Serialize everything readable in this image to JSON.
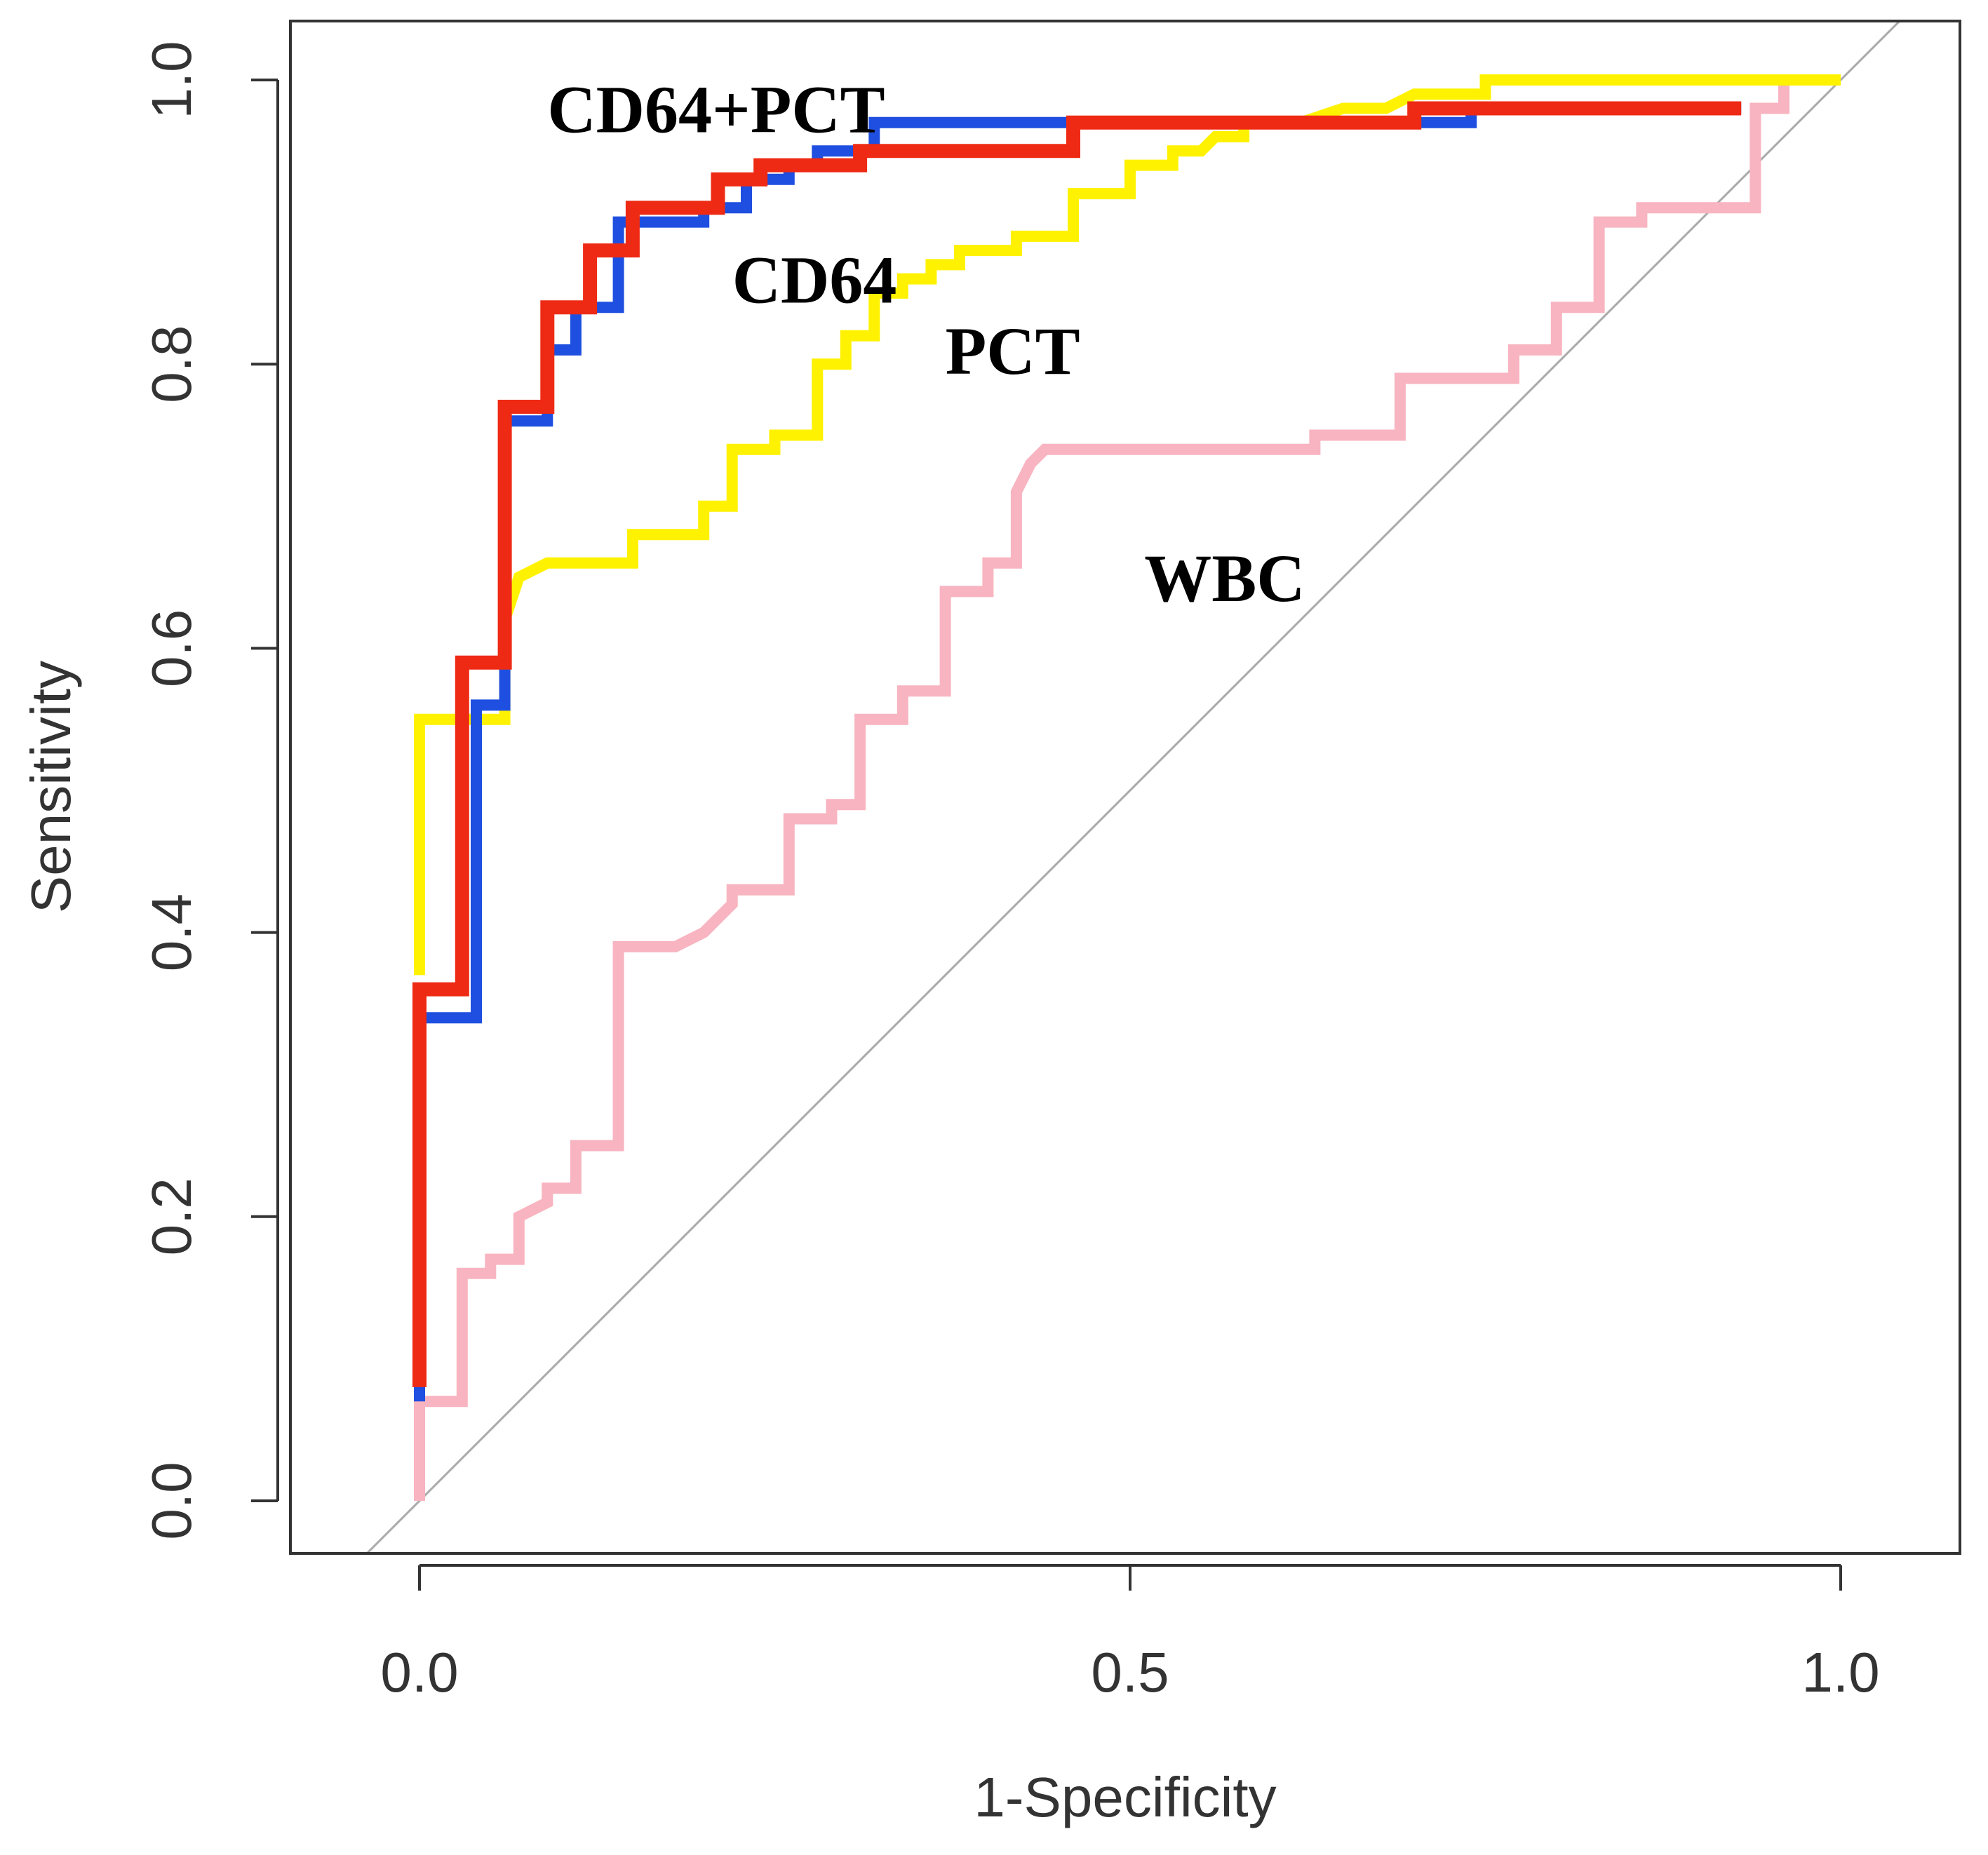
{
  "chart_data": {
    "type": "line",
    "title": "",
    "xlabel": "1-Specificity",
    "ylabel": "Sensitivity",
    "xlim": [
      -0.09,
      1.08
    ],
    "ylim": [
      -0.04,
      1.04
    ],
    "x_ticks": [
      "0.0",
      "0.5",
      "1.0"
    ],
    "y_ticks": [
      "0.0",
      "0.2",
      "0.4",
      "0.6",
      "0.8",
      "1.0"
    ],
    "grid": false,
    "reference_line": {
      "x": [
        0,
        1
      ],
      "y": [
        0,
        1
      ],
      "color": "#aaaaaa"
    },
    "series": [
      {
        "name": "WBC",
        "color": "#f8b4c0",
        "x": [
          0,
          0,
          0.01,
          0.01,
          0.03,
          0.03,
          0.05,
          0.05,
          0.07,
          0.07,
          0.09,
          0.09,
          0.11,
          0.11,
          0.14,
          0.14,
          0.18,
          0.2,
          0.22,
          0.22,
          0.26,
          0.26,
          0.29,
          0.29,
          0.31,
          0.31,
          0.34,
          0.34,
          0.37,
          0.37,
          0.4,
          0.4,
          0.42,
          0.42,
          0.43,
          0.44,
          0.63,
          0.63,
          0.69,
          0.69,
          0.77,
          0.77,
          0.8,
          0.8,
          0.83,
          0.83,
          0.86,
          0.86,
          0.89,
          0.89,
          0.94,
          0.94,
          0.96,
          0.96,
          1.0
        ],
        "y": [
          0,
          0.07,
          0.07,
          0.07,
          0.07,
          0.16,
          0.16,
          0.17,
          0.17,
          0.2,
          0.21,
          0.22,
          0.22,
          0.25,
          0.25,
          0.39,
          0.39,
          0.4,
          0.42,
          0.43,
          0.43,
          0.48,
          0.48,
          0.49,
          0.49,
          0.55,
          0.55,
          0.57,
          0.57,
          0.64,
          0.64,
          0.66,
          0.66,
          0.71,
          0.73,
          0.74,
          0.74,
          0.75,
          0.75,
          0.79,
          0.79,
          0.81,
          0.81,
          0.84,
          0.84,
          0.9,
          0.9,
          0.91,
          0.91,
          0.91,
          0.91,
          0.98,
          0.98,
          1.0,
          1.0
        ]
      },
      {
        "name": "PCT",
        "color": "#fff200",
        "x": [
          0,
          0,
          0.02,
          0.02,
          0.06,
          0.06,
          0.07,
          0.07,
          0.09,
          0.09,
          0.15,
          0.15,
          0.18,
          0.18,
          0.2,
          0.2,
          0.22,
          0.22,
          0.25,
          0.25,
          0.28,
          0.28,
          0.3,
          0.3,
          0.32,
          0.32,
          0.34,
          0.34,
          0.36,
          0.36,
          0.38,
          0.38,
          0.42,
          0.42,
          0.46,
          0.46,
          0.5,
          0.5,
          0.53,
          0.53,
          0.55,
          0.56,
          0.58,
          0.58,
          0.62,
          0.65,
          0.68,
          0.7,
          0.75,
          0.75,
          1.0
        ],
        "y": [
          0.37,
          0.55,
          0.55,
          0.55,
          0.55,
          0.62,
          0.65,
          0.65,
          0.66,
          0.66,
          0.66,
          0.68,
          0.68,
          0.68,
          0.68,
          0.7,
          0.7,
          0.74,
          0.74,
          0.75,
          0.75,
          0.8,
          0.8,
          0.82,
          0.82,
          0.85,
          0.85,
          0.86,
          0.86,
          0.87,
          0.87,
          0.88,
          0.88,
          0.89,
          0.89,
          0.92,
          0.92,
          0.94,
          0.94,
          0.95,
          0.95,
          0.96,
          0.96,
          0.97,
          0.97,
          0.98,
          0.98,
          0.99,
          0.99,
          1.0,
          1.0
        ]
      },
      {
        "name": "CD64",
        "color": "#1f4fe0",
        "x": [
          0,
          0,
          0.02,
          0.02,
          0.04,
          0.04,
          0.06,
          0.06,
          0.09,
          0.09,
          0.11,
          0.11,
          0.13,
          0.13,
          0.14,
          0.14,
          0.2,
          0.2,
          0.23,
          0.23,
          0.26,
          0.26,
          0.28,
          0.28,
          0.32,
          0.32,
          0.43,
          0.43,
          0.74,
          0.74,
          0.8,
          0.8,
          0.93
        ],
        "y": [
          0.07,
          0.34,
          0.34,
          0.34,
          0.34,
          0.56,
          0.56,
          0.76,
          0.76,
          0.81,
          0.81,
          0.84,
          0.84,
          0.84,
          0.84,
          0.9,
          0.9,
          0.91,
          0.91,
          0.93,
          0.93,
          0.94,
          0.94,
          0.95,
          0.95,
          0.97,
          0.97,
          0.97,
          0.97,
          0.98,
          0.98,
          0.98,
          0.98
        ]
      },
      {
        "name": "CD64+PCT",
        "color": "#ee2a14",
        "x": [
          0,
          0,
          0.03,
          0.03,
          0.06,
          0.06,
          0.09,
          0.09,
          0.12,
          0.12,
          0.15,
          0.15,
          0.21,
          0.21,
          0.24,
          0.24,
          0.31,
          0.31,
          0.46,
          0.46,
          0.7,
          0.7,
          0.93
        ],
        "y": [
          0.08,
          0.36,
          0.36,
          0.59,
          0.59,
          0.77,
          0.77,
          0.84,
          0.84,
          0.88,
          0.88,
          0.91,
          0.91,
          0.93,
          0.93,
          0.94,
          0.94,
          0.95,
          0.95,
          0.97,
          0.97,
          0.98,
          0.98
        ]
      }
    ],
    "annotations": [
      {
        "text": "CD64+PCT",
        "x": 0.09,
        "y": 0.98
      },
      {
        "text": "CD64",
        "x": 0.22,
        "y": 0.86
      },
      {
        "text": "PCT",
        "x": 0.37,
        "y": 0.81
      },
      {
        "text": "WBC",
        "x": 0.51,
        "y": 0.65
      }
    ]
  }
}
